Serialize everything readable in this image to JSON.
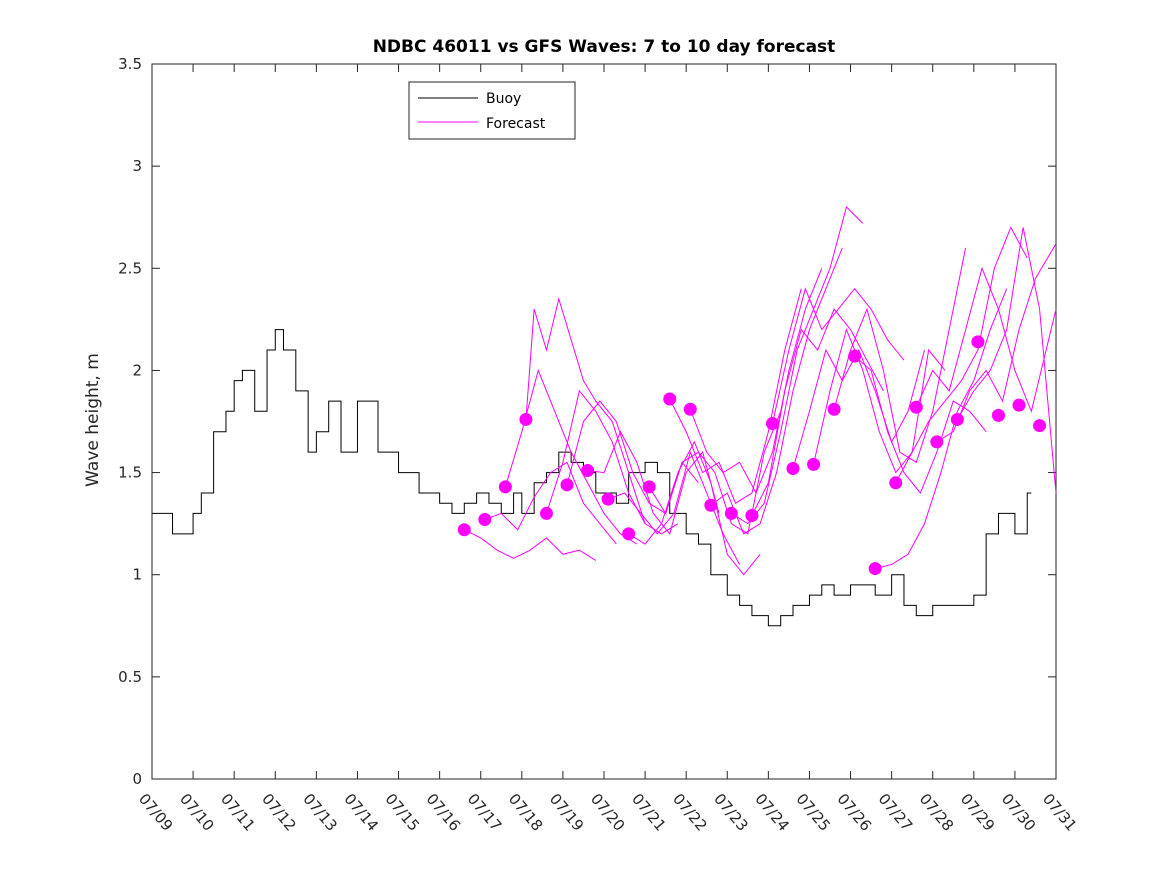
{
  "chart_data": {
    "type": "line",
    "title": "NDBC 46011 vs GFS Waves: 7 to 10 day forecast",
    "xlabel": "",
    "ylabel": "Wave height, m",
    "x_ticks": [
      "07/09",
      "07/10",
      "07/11",
      "07/12",
      "07/13",
      "07/14",
      "07/15",
      "07/16",
      "07/17",
      "07/18",
      "07/19",
      "07/20",
      "07/21",
      "07/22",
      "07/23",
      "07/24",
      "07/25",
      "07/26",
      "07/27",
      "07/28",
      "07/29",
      "07/30",
      "07/31"
    ],
    "xlim": [
      0,
      22
    ],
    "ylim": [
      0,
      3.5
    ],
    "y_ticks": [
      0,
      0.5,
      1,
      1.5,
      2,
      2.5,
      3,
      3.5
    ],
    "grid": false,
    "legend": {
      "placement": "top-left",
      "entries": [
        {
          "name": "Buoy",
          "color": "#000000"
        },
        {
          "name": "Forecast",
          "color": "#ff00ff"
        }
      ]
    },
    "series": [
      {
        "name": "Buoy",
        "color": "#000000",
        "x": [
          0,
          0.5,
          1,
          1.2,
          1.5,
          1.8,
          2,
          2.2,
          2.5,
          2.8,
          3,
          3.2,
          3.5,
          3.8,
          4,
          4.3,
          4.6,
          5,
          5.5,
          6,
          6.5,
          7,
          7.3,
          7.6,
          7.9,
          8.2,
          8.5,
          8.8,
          9,
          9.3,
          9.6,
          9.9,
          10.2,
          10.5,
          10.8,
          11,
          11.3,
          11.6,
          12,
          12.3,
          12.6,
          13,
          13.3,
          13.6,
          14,
          14.3,
          14.6,
          15,
          15.3,
          15.6,
          16,
          16.3,
          16.6,
          17,
          17.3,
          17.6,
          18,
          18.3,
          18.6,
          19,
          19.3,
          19.6,
          20,
          20.3,
          20.6,
          21,
          21.3
        ],
        "y": [
          1.3,
          1.2,
          1.3,
          1.4,
          1.7,
          1.8,
          1.95,
          2.0,
          1.8,
          2.1,
          2.2,
          2.1,
          1.9,
          1.6,
          1.7,
          1.85,
          1.6,
          1.85,
          1.6,
          1.5,
          1.4,
          1.35,
          1.3,
          1.35,
          1.4,
          1.35,
          1.3,
          1.4,
          1.3,
          1.45,
          1.5,
          1.6,
          1.55,
          1.5,
          1.4,
          1.4,
          1.35,
          1.5,
          1.55,
          1.5,
          1.3,
          1.2,
          1.15,
          1.0,
          0.9,
          0.85,
          0.8,
          0.75,
          0.8,
          0.85,
          0.9,
          0.95,
          0.9,
          0.95,
          0.95,
          0.9,
          1.0,
          0.85,
          0.8,
          0.85,
          0.85,
          0.85,
          0.9,
          1.2,
          1.3,
          1.2,
          1.4
        ]
      },
      {
        "name": "Forecast",
        "color": "#ff00ff",
        "x": [
          7.6,
          8.0,
          8.4,
          8.8,
          9.2,
          9.6,
          10.0,
          10.4,
          10.8
        ],
        "y": [
          1.22,
          1.18,
          1.12,
          1.08,
          1.12,
          1.18,
          1.1,
          1.12,
          1.07
        ]
      },
      {
        "name": "Forecast",
        "color": "#ff00ff",
        "x": [
          8.1,
          8.5,
          8.9,
          9.3,
          9.7,
          10.1,
          10.5,
          10.9,
          11.3
        ],
        "y": [
          1.27,
          1.3,
          1.22,
          1.38,
          1.5,
          1.55,
          1.35,
          1.25,
          1.15
        ]
      },
      {
        "name": "Forecast",
        "color": "#ff00ff",
        "x": [
          8.6,
          9.0,
          9.4,
          9.8,
          10.2,
          10.6,
          11.0,
          11.4,
          11.8
        ],
        "y": [
          1.43,
          1.7,
          2.0,
          1.8,
          1.6,
          1.45,
          1.3,
          1.2,
          1.15
        ]
      },
      {
        "name": "Forecast",
        "color": "#ff00ff",
        "x": [
          9.1,
          9.3,
          9.6,
          9.9,
          10.2,
          10.5,
          10.8,
          11.2,
          11.6,
          12.0
        ],
        "y": [
          1.76,
          2.3,
          2.1,
          2.35,
          2.15,
          1.95,
          1.85,
          1.75,
          1.5,
          1.25
        ]
      },
      {
        "name": "Forecast",
        "color": "#ff00ff",
        "x": [
          9.6,
          10.0,
          10.4,
          10.8,
          11.2,
          11.6,
          12.0,
          12.4,
          12.8
        ],
        "y": [
          1.3,
          1.55,
          1.9,
          1.8,
          1.65,
          1.4,
          1.25,
          1.2,
          1.25
        ]
      },
      {
        "name": "Forecast",
        "color": "#ff00ff",
        "x": [
          10.1,
          10.5,
          10.9,
          11.3,
          11.7,
          12.1,
          12.5,
          12.9,
          13.3
        ],
        "y": [
          1.44,
          1.75,
          1.85,
          1.75,
          1.5,
          1.35,
          1.3,
          1.55,
          1.45
        ]
      },
      {
        "name": "Forecast",
        "color": "#ff00ff",
        "x": [
          10.6,
          11.0,
          11.4,
          11.8,
          12.2,
          12.6,
          13.0,
          13.4,
          13.8
        ],
        "y": [
          1.51,
          1.5,
          1.7,
          1.55,
          1.3,
          1.2,
          1.5,
          1.6,
          1.3
        ]
      },
      {
        "name": "Forecast",
        "color": "#ff00ff",
        "x": [
          11.1,
          11.5,
          11.9,
          12.3,
          12.7,
          13.1,
          13.5,
          13.9,
          14.3
        ],
        "y": [
          1.37,
          1.4,
          1.3,
          1.2,
          1.3,
          1.6,
          1.4,
          1.2,
          1.05
        ]
      },
      {
        "name": "Forecast",
        "color": "#ff00ff",
        "x": [
          11.6,
          12.0,
          12.4,
          12.8,
          13.2,
          13.6,
          14.0,
          14.4,
          14.8
        ],
        "y": [
          1.2,
          1.15,
          1.25,
          1.5,
          1.65,
          1.45,
          1.1,
          1.0,
          1.1
        ]
      },
      {
        "name": "Forecast",
        "color": "#ff00ff",
        "x": [
          12.1,
          12.5,
          12.9,
          13.3,
          13.7,
          14.1,
          14.5,
          14.9,
          15.3
        ],
        "y": [
          1.43,
          1.3,
          1.55,
          1.6,
          1.5,
          1.25,
          1.2,
          1.6,
          1.8
        ]
      },
      {
        "name": "Forecast",
        "color": "#ff00ff",
        "x": [
          12.6,
          13.0,
          13.4,
          13.8,
          14.2,
          14.6,
          15.0,
          15.4,
          15.8
        ],
        "y": [
          1.86,
          1.7,
          1.5,
          1.55,
          1.35,
          1.4,
          1.7,
          2.1,
          2.4
        ]
      },
      {
        "name": "Forecast",
        "color": "#ff00ff",
        "x": [
          13.1,
          13.5,
          13.9,
          14.3,
          14.7,
          15.1,
          15.5,
          15.9,
          16.3
        ],
        "y": [
          1.81,
          1.6,
          1.5,
          1.55,
          1.4,
          1.6,
          2.0,
          2.3,
          2.5
        ]
      },
      {
        "name": "Forecast",
        "color": "#ff00ff",
        "x": [
          13.6,
          14.0,
          14.4,
          14.8,
          15.2,
          15.6,
          16.0,
          16.4,
          16.8
        ],
        "y": [
          1.34,
          1.4,
          1.2,
          1.25,
          1.5,
          1.9,
          2.2,
          2.4,
          2.6
        ]
      },
      {
        "name": "Forecast",
        "color": "#ff00ff",
        "x": [
          14.1,
          14.5,
          14.9,
          15.3,
          15.7,
          16.1,
          16.5,
          16.9,
          17.3
        ],
        "y": [
          1.3,
          1.25,
          1.35,
          1.7,
          2.1,
          2.3,
          2.5,
          2.8,
          2.72
        ]
      },
      {
        "name": "Forecast",
        "color": "#ff00ff",
        "x": [
          14.6,
          15.0,
          15.4,
          15.8,
          16.2,
          16.6,
          17.0,
          17.4,
          17.8
        ],
        "y": [
          1.29,
          1.45,
          1.9,
          2.2,
          2.1,
          2.3,
          2.2,
          2.05,
          1.9
        ]
      },
      {
        "name": "Forecast",
        "color": "#ff00ff",
        "x": [
          15.1,
          15.5,
          15.9,
          16.3,
          16.7,
          17.1,
          17.5,
          17.9,
          18.3
        ],
        "y": [
          1.74,
          2.1,
          2.4,
          2.2,
          2.3,
          2.4,
          2.3,
          2.15,
          2.05
        ]
      },
      {
        "name": "Forecast",
        "color": "#ff00ff",
        "x": [
          15.6,
          16.0,
          16.4,
          16.8,
          17.2,
          17.6,
          18.0,
          18.4,
          18.8
        ],
        "y": [
          1.52,
          1.8,
          2.1,
          1.95,
          2.1,
          1.9,
          1.65,
          1.8,
          2.1
        ]
      },
      {
        "name": "Forecast",
        "color": "#ff00ff",
        "x": [
          16.1,
          16.5,
          16.9,
          17.3,
          17.7,
          18.1,
          18.5,
          18.9,
          19.3
        ],
        "y": [
          1.54,
          1.9,
          2.2,
          2.0,
          1.7,
          1.5,
          1.6,
          2.1,
          2.0
        ]
      },
      {
        "name": "Forecast",
        "color": "#ff00ff",
        "x": [
          16.6,
          17.0,
          17.4,
          17.8,
          18.2,
          18.6,
          19.0,
          19.4,
          19.8
        ],
        "y": [
          1.81,
          2.1,
          2.3,
          2.0,
          1.6,
          1.55,
          1.8,
          2.2,
          2.6
        ]
      },
      {
        "name": "Forecast",
        "color": "#ff00ff",
        "x": [
          17.1,
          17.5,
          17.9,
          18.3,
          18.7,
          19.1,
          19.5,
          19.9,
          20.3
        ],
        "y": [
          2.07,
          2.0,
          1.7,
          1.5,
          1.4,
          1.6,
          1.85,
          1.8,
          1.7
        ]
      },
      {
        "name": "Forecast",
        "color": "#ff00ff",
        "x": [
          17.6,
          18.0,
          18.4,
          18.8,
          19.2,
          19.6,
          20.0,
          20.4,
          20.8
        ],
        "y": [
          1.03,
          1.05,
          1.1,
          1.25,
          1.5,
          1.8,
          1.95,
          2.2,
          2.4
        ]
      },
      {
        "name": "Forecast",
        "color": "#ff00ff",
        "x": [
          18.1,
          18.5,
          18.9,
          19.3,
          19.7,
          20.1,
          20.5,
          20.9,
          21.3
        ],
        "y": [
          1.45,
          1.6,
          1.75,
          1.85,
          1.95,
          2.1,
          2.5,
          2.7,
          2.55
        ]
      },
      {
        "name": "Forecast",
        "color": "#ff00ff",
        "x": [
          18.6,
          19.0,
          19.4,
          19.8,
          20.2,
          20.6,
          21.0,
          21.4,
          22.0
        ],
        "y": [
          1.82,
          2.0,
          1.9,
          2.2,
          2.5,
          2.3,
          2.0,
          1.8,
          2.3
        ]
      },
      {
        "name": "Forecast",
        "color": "#ff00ff",
        "x": [
          19.1,
          19.5,
          19.9,
          20.3,
          20.7,
          21.1,
          21.5,
          22.0
        ],
        "y": [
          1.65,
          1.7,
          1.9,
          2.0,
          1.85,
          2.2,
          2.45,
          2.62
        ]
      },
      {
        "name": "Forecast",
        "color": "#ff00ff",
        "x": [
          19.6,
          20.0,
          20.4,
          20.8,
          21.2,
          21.6,
          22.0
        ],
        "y": [
          1.76,
          1.9,
          2.0,
          2.2,
          2.7,
          2.3,
          1.4
        ]
      }
    ],
    "forecast_points": {
      "name": "Forecast",
      "color": "#ff00ff",
      "x": [
        7.6,
        8.1,
        8.6,
        9.1,
        9.6,
        10.1,
        10.6,
        11.1,
        11.6,
        12.1,
        12.6,
        13.1,
        13.6,
        14.1,
        14.6,
        15.1,
        15.6,
        16.1,
        16.6,
        17.1,
        17.6,
        18.1,
        18.6,
        19.1,
        19.6,
        20.1,
        20.6,
        21.1,
        21.6
      ],
      "y": [
        1.22,
        1.27,
        1.43,
        1.76,
        1.3,
        1.44,
        1.51,
        1.37,
        1.2,
        1.43,
        1.86,
        1.81,
        1.34,
        1.3,
        1.29,
        1.74,
        1.52,
        1.54,
        1.81,
        2.07,
        1.03,
        1.45,
        1.82,
        1.65,
        1.76,
        2.14,
        1.78,
        1.83,
        1.73
      ]
    }
  }
}
